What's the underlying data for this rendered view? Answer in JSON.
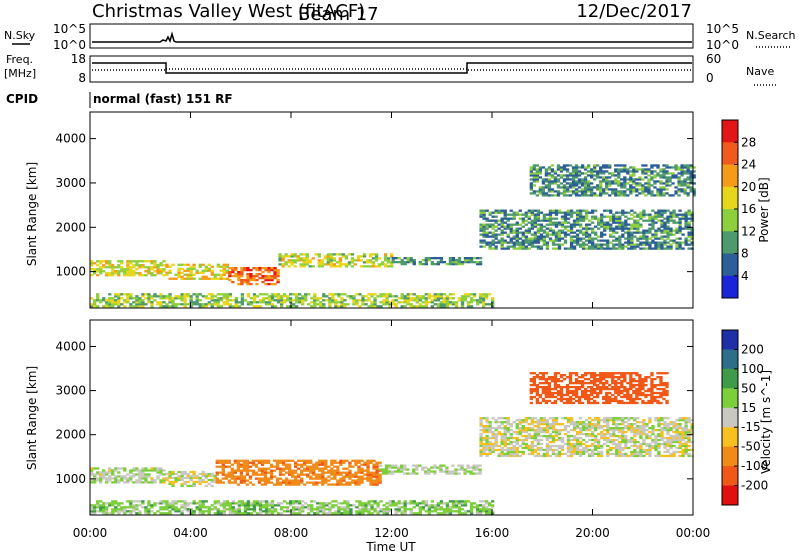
{
  "header": {
    "station": "Christmas Valley West (fitACF)",
    "beam": "Beam 17",
    "date": "12/Dec/2017"
  },
  "status_panel": {
    "nsky_label": "N.Sky",
    "nsearch_label": "N.Search",
    "noise_ticks": [
      "10^5",
      "10^0"
    ],
    "freq_label_1": "Freq.",
    "freq_label_2": "[MHz]",
    "freq_ticks": [
      "18",
      "8"
    ],
    "nave_label": "Nave",
    "nave_ticks": [
      "60",
      "0"
    ],
    "cpid_label": "CPID",
    "cpid_value": "normal (fast) 151 RF"
  },
  "chart_data": [
    {
      "type": "heatmap",
      "title": "Power",
      "xlabel": "Time UT",
      "ylabel": "Slant Range [km]",
      "x_ticks": [
        "00:00",
        "04:00",
        "08:00",
        "12:00",
        "16:00",
        "20:00",
        "00:00"
      ],
      "x_range_hours": [
        0,
        24
      ],
      "y_ticks": [
        1000,
        2000,
        3000,
        4000
      ],
      "ylim": [
        180,
        4600
      ],
      "colorbar_label": "Power [dB]",
      "colorbar_ticks": [
        "28",
        "24",
        "20",
        "16",
        "12",
        "8",
        "4"
      ],
      "colorbar_colors": [
        "#e21616",
        "#f05a1c",
        "#f59b1a",
        "#e8d61c",
        "#8ecf3e",
        "#4e9a6c",
        "#2c5f96",
        "#1a24d8"
      ],
      "echo_regions": [
        {
          "t0": 0.0,
          "t1": 3.0,
          "r0": 900,
          "r1": 1250,
          "level": 17
        },
        {
          "t0": 3.0,
          "t1": 5.5,
          "r0": 820,
          "r1": 1150,
          "level": 18
        },
        {
          "t0": 5.5,
          "t1": 7.5,
          "r0": 700,
          "r1": 1100,
          "level": 25
        },
        {
          "t0": 7.5,
          "t1": 12.0,
          "r0": 1100,
          "r1": 1400,
          "level": 16
        },
        {
          "t0": 12.0,
          "t1": 15.5,
          "r0": 1150,
          "r1": 1320,
          "level": 10
        },
        {
          "t0": 15.5,
          "t1": 24.0,
          "r0": 1500,
          "r1": 2400,
          "level": 9
        },
        {
          "t0": 17.5,
          "t1": 24.0,
          "r0": 2700,
          "r1": 3400,
          "level": 9
        },
        {
          "t0": 0.0,
          "t1": 16.0,
          "r0": 200,
          "r1": 480,
          "level": 14
        }
      ]
    },
    {
      "type": "heatmap",
      "title": "Velocity",
      "xlabel": "Time UT",
      "ylabel": "Slant Range [km]",
      "x_ticks": [
        "00:00",
        "04:00",
        "08:00",
        "12:00",
        "16:00",
        "20:00",
        "00:00"
      ],
      "x_range_hours": [
        0,
        24
      ],
      "y_ticks": [
        1000,
        2000,
        3000,
        4000
      ],
      "ylim": [
        180,
        4600
      ],
      "colorbar_label": "Velocity [m s^-1]",
      "colorbar_ticks": [
        "200",
        "100",
        "50",
        "15",
        "-15",
        "-50",
        "-100",
        "-200"
      ],
      "colorbar_colors": [
        "#1f2fa8",
        "#2f6e8a",
        "#3f9a4a",
        "#7ccf3a",
        "#c8c8c0",
        "#f5c020",
        "#f08a18",
        "#f05818",
        "#e01010"
      ],
      "echo_regions": [
        {
          "t0": 0.0,
          "t1": 3.0,
          "r0": 900,
          "r1": 1250,
          "level": 10
        },
        {
          "t0": 3.0,
          "t1": 5.0,
          "r0": 820,
          "r1": 1150,
          "level": 0
        },
        {
          "t0": 5.0,
          "t1": 11.5,
          "r0": 850,
          "r1": 1400,
          "level": -80
        },
        {
          "t0": 11.5,
          "t1": 15.5,
          "r0": 1100,
          "r1": 1320,
          "level": 20
        },
        {
          "t0": 15.5,
          "t1": 24.0,
          "r0": 1500,
          "r1": 2400,
          "level": 0
        },
        {
          "t0": 17.5,
          "t1": 23.0,
          "r0": 2700,
          "r1": 3400,
          "level": -150
        },
        {
          "t0": 0.0,
          "t1": 16.0,
          "r0": 200,
          "r1": 480,
          "level": 30
        }
      ]
    }
  ]
}
